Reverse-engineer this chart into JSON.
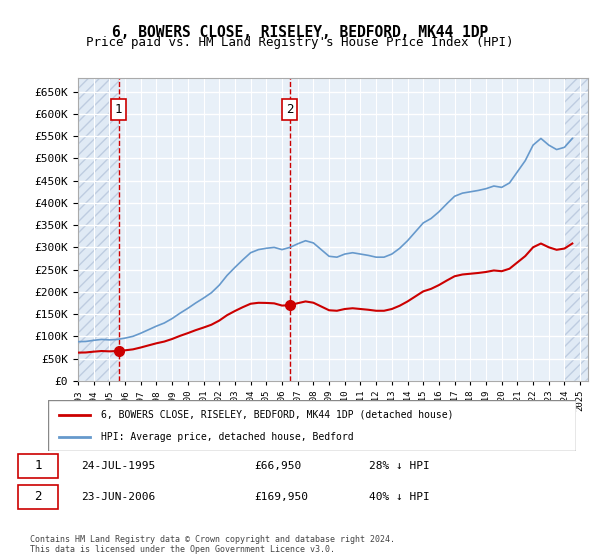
{
  "title": "6, BOWERS CLOSE, RISELEY, BEDFORD, MK44 1DP",
  "subtitle": "Price paid vs. HM Land Registry's House Price Index (HPI)",
  "sale1_date": "1995-07-24",
  "sale1_price": 66950,
  "sale1_label": "1",
  "sale2_date": "2006-06-23",
  "sale2_price": 169950,
  "sale2_label": "2",
  "legend_line1": "6, BOWERS CLOSE, RISELEY, BEDFORD, MK44 1DP (detached house)",
  "legend_line2": "HPI: Average price, detached house, Bedford",
  "table_row1": "1    24-JUL-1995    £66,950    28% ↓ HPI",
  "table_row2": "2    23-JUN-2006    £169,950    40% ↓ HPI",
  "footer": "Contains HM Land Registry data © Crown copyright and database right 2024.\nThis data is licensed under the Open Government Licence v3.0.",
  "hpi_color": "#6699cc",
  "price_color": "#cc0000",
  "vline_color": "#cc0000",
  "background_hatch_color": "#ddeeff",
  "ylim_min": 0,
  "ylim_max": 680000
}
